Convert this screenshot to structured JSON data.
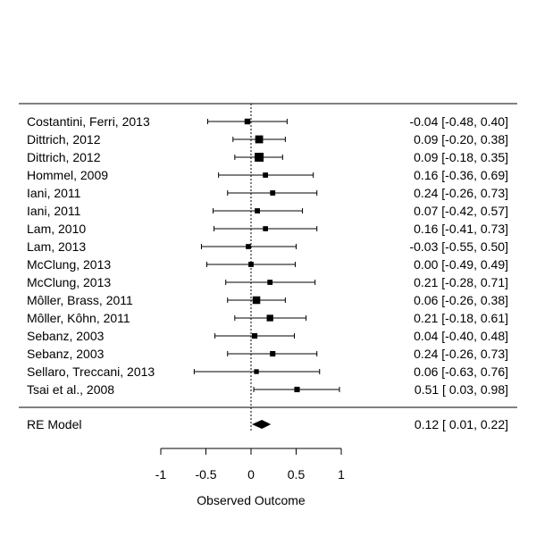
{
  "chart_data": {
    "type": "forest",
    "xlabel": "Observed Outcome",
    "xlim": [
      -1,
      1
    ],
    "xticks": [
      -1,
      -0.5,
      0,
      0.5,
      1
    ],
    "xtick_labels": [
      "-1",
      "-0.5",
      "0",
      "0.5",
      "1"
    ],
    "reference_line": 0,
    "studies": [
      {
        "label": "Costantini, Ferri, 2013",
        "estimate": -0.04,
        "lower": -0.48,
        "upper": 0.4,
        "text": "-0.04 [-0.48, 0.40]",
        "weight": 0.8
      },
      {
        "label": "Dittrich, 2012",
        "estimate": 0.09,
        "lower": -0.2,
        "upper": 0.38,
        "text": "0.09 [-0.20, 0.38]",
        "weight": 1.6
      },
      {
        "label": "Dittrich, 2012",
        "estimate": 0.09,
        "lower": -0.18,
        "upper": 0.35,
        "text": "0.09 [-0.18, 0.35]",
        "weight": 2.0
      },
      {
        "label": "Hommel, 2009",
        "estimate": 0.16,
        "lower": -0.36,
        "upper": 0.69,
        "text": "0.16 [-0.36, 0.69]",
        "weight": 0.6
      },
      {
        "label": "Iani, 2011",
        "estimate": 0.24,
        "lower": -0.26,
        "upper": 0.73,
        "text": "0.24 [-0.26, 0.73]",
        "weight": 0.6
      },
      {
        "label": "Iani, 2011",
        "estimate": 0.07,
        "lower": -0.42,
        "upper": 0.57,
        "text": "0.07 [-0.42, 0.57]",
        "weight": 0.6
      },
      {
        "label": "Lam, 2010",
        "estimate": 0.16,
        "lower": -0.41,
        "upper": 0.73,
        "text": "0.16 [-0.41, 0.73]",
        "weight": 0.55
      },
      {
        "label": "Lam, 2013",
        "estimate": -0.03,
        "lower": -0.55,
        "upper": 0.5,
        "text": "-0.03 [-0.55, 0.50]",
        "weight": 0.55
      },
      {
        "label": "McClung, 2013",
        "estimate": 0.0,
        "lower": -0.49,
        "upper": 0.49,
        "text": "0.00 [-0.49, 0.49]",
        "weight": 0.6
      },
      {
        "label": "McClung, 2013",
        "estimate": 0.21,
        "lower": -0.28,
        "upper": 0.71,
        "text": "0.21 [-0.28, 0.71]",
        "weight": 0.6
      },
      {
        "label": "Môller, Brass, 2011",
        "estimate": 0.06,
        "lower": -0.26,
        "upper": 0.38,
        "text": "0.06 [-0.26, 0.38]",
        "weight": 1.5
      },
      {
        "label": "Môller, Kôhn, 2011",
        "estimate": 0.21,
        "lower": -0.18,
        "upper": 0.61,
        "text": "0.21 [-0.18, 0.61]",
        "weight": 1.1
      },
      {
        "label": "Sebanz, 2003",
        "estimate": 0.04,
        "lower": -0.4,
        "upper": 0.48,
        "text": "0.04 [-0.40, 0.48]",
        "weight": 0.7
      },
      {
        "label": "Sebanz, 2003",
        "estimate": 0.24,
        "lower": -0.26,
        "upper": 0.73,
        "text": "0.24 [-0.26, 0.73]",
        "weight": 0.7
      },
      {
        "label": "Sellaro, Treccani, 2013",
        "estimate": 0.06,
        "lower": -0.63,
        "upper": 0.76,
        "text": "0.06 [-0.63, 0.76]",
        "weight": 0.45
      },
      {
        "label": "Tsai et al., 2008",
        "estimate": 0.51,
        "lower": 0.03,
        "upper": 0.98,
        "text": "0.51 [ 0.03, 0.98]",
        "weight": 0.7
      }
    ],
    "summary": {
      "label": "RE Model",
      "estimate": 0.12,
      "lower": 0.01,
      "upper": 0.22,
      "text": "0.12 [ 0.01, 0.22]"
    }
  }
}
